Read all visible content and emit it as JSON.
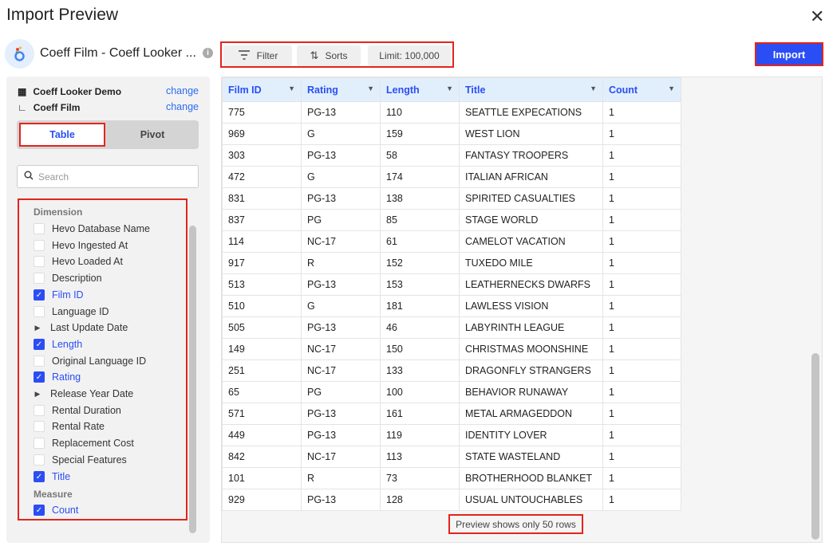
{
  "dialog": {
    "title": "Import Preview",
    "close_icon": "close-icon"
  },
  "header": {
    "datasource_name": "Coeff Film - Coeff Looker ...",
    "info": "i",
    "filter_label": "Filter",
    "sorts_label": "Sorts",
    "limit_label": "Limit: 100,000",
    "import_label": "Import"
  },
  "colors": {
    "accent": "#2b4ef4",
    "highlight": "#e3241b"
  },
  "source": {
    "model": "Coeff Looker Demo",
    "explore": "Coeff Film",
    "change": "change"
  },
  "view_tabs": {
    "table": "Table",
    "pivot": "Pivot",
    "selected": "Table"
  },
  "search": {
    "placeholder": "Search"
  },
  "fields": {
    "dimension_label": "Dimension",
    "dimensions": [
      {
        "label": "Hevo Database Name",
        "checked": false
      },
      {
        "label": "Hevo Ingested At",
        "checked": false
      },
      {
        "label": "Hevo Loaded At",
        "checked": false
      },
      {
        "label": "Description",
        "checked": false
      },
      {
        "label": "Film ID",
        "checked": true
      },
      {
        "label": "Language ID",
        "checked": false
      },
      {
        "label": "Last Update Date",
        "group": true
      },
      {
        "label": "Length",
        "checked": true
      },
      {
        "label": "Original Language ID",
        "checked": false
      },
      {
        "label": "Rating",
        "checked": true
      },
      {
        "label": "Release Year Date",
        "group": true
      },
      {
        "label": "Rental Duration",
        "checked": false
      },
      {
        "label": "Rental Rate",
        "checked": false
      },
      {
        "label": "Replacement Cost",
        "checked": false
      },
      {
        "label": "Special Features",
        "checked": false
      },
      {
        "label": "Title",
        "checked": true
      }
    ],
    "measure_label": "Measure",
    "measures": [
      {
        "label": "Count",
        "checked": true
      }
    ]
  },
  "table": {
    "columns": [
      "Film ID",
      "Rating",
      "Length",
      "Title",
      "Count"
    ],
    "rows": [
      [
        "775",
        "PG-13",
        "110",
        "SEATTLE EXPECATIONS",
        "1"
      ],
      [
        "969",
        "G",
        "159",
        "WEST LION",
        "1"
      ],
      [
        "303",
        "PG-13",
        "58",
        "FANTASY TROOPERS",
        "1"
      ],
      [
        "472",
        "G",
        "174",
        "ITALIAN AFRICAN",
        "1"
      ],
      [
        "831",
        "PG-13",
        "138",
        "SPIRITED CASUALTIES",
        "1"
      ],
      [
        "837",
        "PG",
        "85",
        "STAGE WORLD",
        "1"
      ],
      [
        "114",
        "NC-17",
        "61",
        "CAMELOT VACATION",
        "1"
      ],
      [
        "917",
        "R",
        "152",
        "TUXEDO MILE",
        "1"
      ],
      [
        "513",
        "PG-13",
        "153",
        "LEATHERNECKS DWARFS",
        "1"
      ],
      [
        "510",
        "G",
        "181",
        "LAWLESS VISION",
        "1"
      ],
      [
        "505",
        "PG-13",
        "46",
        "LABYRINTH LEAGUE",
        "1"
      ],
      [
        "149",
        "NC-17",
        "150",
        "CHRISTMAS MOONSHINE",
        "1"
      ],
      [
        "251",
        "NC-17",
        "133",
        "DRAGONFLY STRANGERS",
        "1"
      ],
      [
        "65",
        "PG",
        "100",
        "BEHAVIOR RUNAWAY",
        "1"
      ],
      [
        "571",
        "PG-13",
        "161",
        "METAL ARMAGEDDON",
        "1"
      ],
      [
        "449",
        "PG-13",
        "119",
        "IDENTITY LOVER",
        "1"
      ],
      [
        "842",
        "NC-17",
        "113",
        "STATE WASTELAND",
        "1"
      ],
      [
        "101",
        "R",
        "73",
        "BROTHERHOOD BLANKET",
        "1"
      ],
      [
        "929",
        "PG-13",
        "128",
        "USUAL UNTOUCHABLES",
        "1"
      ]
    ],
    "footer": "Preview shows only 50 rows"
  }
}
